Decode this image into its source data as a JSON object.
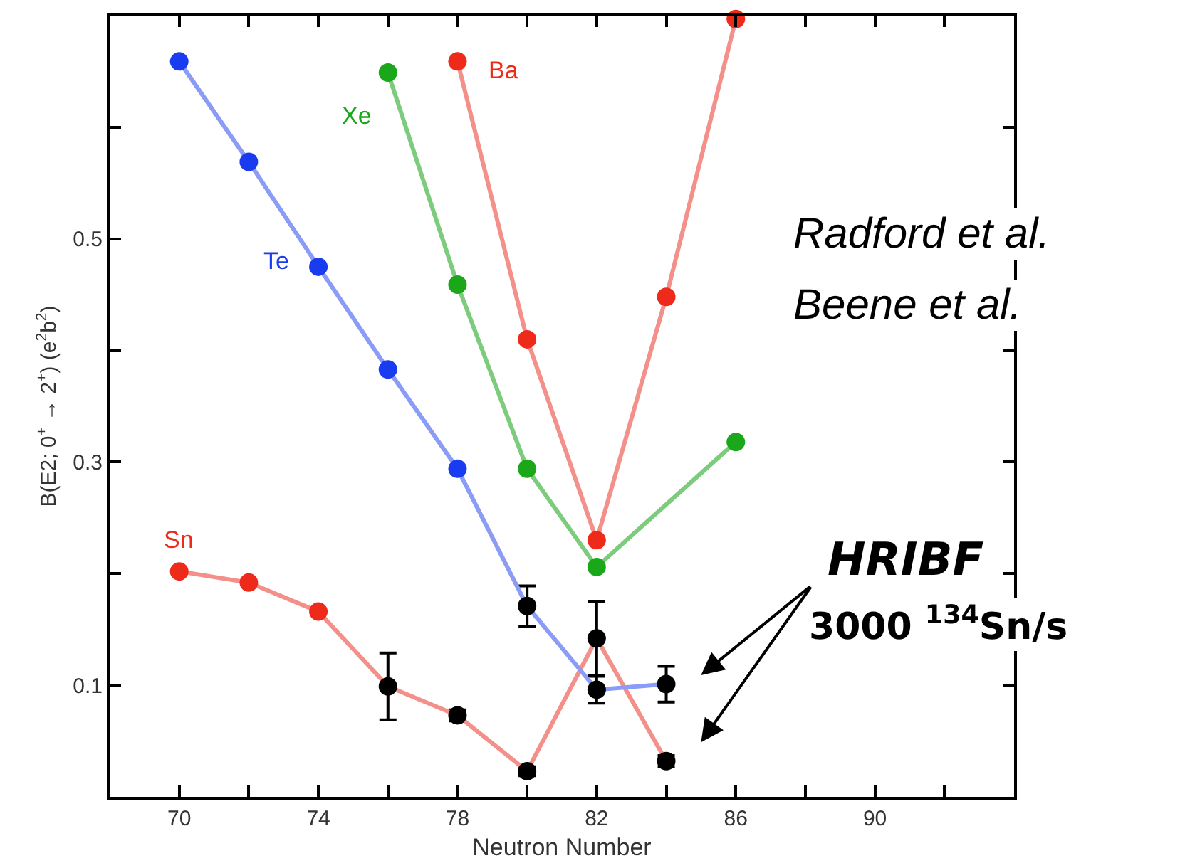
{
  "chart_data": {
    "type": "line",
    "xlabel": "Neutron Number",
    "ylabel": "B(E2; 0$^{+}$ → 2$^{+}$) (e$^{2}$b$^{2}$)",
    "xlim": [
      68,
      94
    ],
    "xticks": [
      70,
      {
        "value": 72,
        "label": null
      },
      74,
      {
        "value": 76,
        "label": null
      },
      78,
      {
        "value": 80,
        "label": null
      },
      82,
      {
        "value": 84,
        "label": null
      },
      86,
      {
        "value": 88,
        "label": null
      },
      90,
      {
        "value": 92,
        "label": null
      }
    ],
    "ylim": [
      0,
      0.7
    ],
    "yticks": [
      {
        "value": 0.1,
        "label": "0.1"
      },
      {
        "value": 0.2,
        "label": null
      },
      {
        "value": 0.3,
        "label": "0.3"
      },
      {
        "value": 0.4,
        "label": null
      },
      {
        "value": 0.5,
        "label": "0.5"
      },
      {
        "value": 0.6,
        "label": null
      }
    ],
    "grid": false,
    "legend": false,
    "marker": "circle",
    "line_style": "solid",
    "series": [
      {
        "name": "Sn",
        "color": "#f4908a",
        "x": [
          70,
          72,
          74,
          76,
          78,
          80,
          82,
          84
        ],
        "values": [
          0.202,
          0.192,
          0.166,
          0.099,
          0.073,
          0.023,
          0.142,
          0.032
        ],
        "colors": [
          "#ee2a1a",
          "#ee2a1a",
          "#ee2a1a",
          "#000000",
          "#000000",
          "#000000",
          "#000000",
          "#000000"
        ],
        "errors": [
          null,
          null,
          null,
          0.03,
          0.005,
          0.004,
          0.033,
          0.005
        ]
      },
      {
        "name": "Te",
        "color": "#8a9cf5",
        "x": [
          70,
          72,
          74,
          76,
          78,
          80,
          82,
          84
        ],
        "values": [
          0.659,
          0.569,
          0.475,
          0.383,
          0.294,
          0.171,
          0.096,
          0.101
        ],
        "colors": [
          "#1a3cf0",
          "#1a3cf0",
          "#1a3cf0",
          "#1a3cf0",
          "#1a3cf0",
          "#000000",
          "#000000",
          "#000000"
        ],
        "errors": [
          null,
          null,
          null,
          null,
          null,
          0.018,
          0.012,
          0.016
        ]
      },
      {
        "name": "Xe",
        "color": "#7dcc7d",
        "x": [
          76,
          78,
          80,
          82,
          86
        ],
        "values": [
          0.649,
          0.459,
          0.294,
          0.206,
          0.318
        ],
        "colors": [
          "#1aa81a",
          "#1aa81a",
          "#1aa81a",
          "#1aa81a",
          "#1aa81a"
        ]
      },
      {
        "name": "Ba",
        "color": "#f4908a",
        "x": [
          78,
          80,
          82,
          84,
          86
        ],
        "values": [
          0.659,
          0.41,
          0.23,
          0.448,
          0.697
        ],
        "colors": [
          "#ee2a1a",
          "#ee2a1a",
          "#ee2a1a",
          "#ee2a1a",
          "#ee2a1a"
        ]
      }
    ],
    "annotations": [
      "Radford et al.",
      "Beene et al.",
      "HRIBF",
      "3000 $^{134}$Sn/s"
    ]
  }
}
